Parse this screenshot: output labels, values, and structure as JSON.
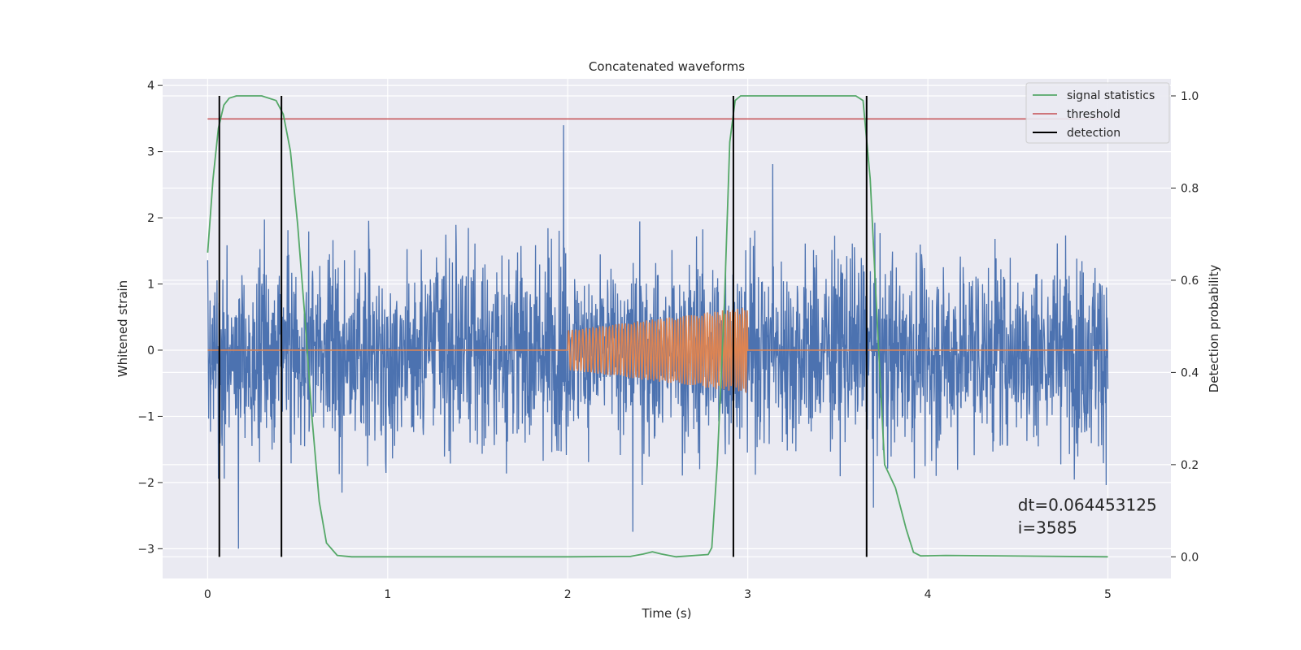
{
  "chart_data": {
    "type": "line",
    "title": "Concatenated waveforms",
    "xlabel": "Time (s)",
    "ylabel": "Whitened strain",
    "y2label": "Detection probability",
    "xlim": [
      -0.25,
      5.35
    ],
    "ylim": [
      -3.45,
      4.1
    ],
    "y2lim": [
      -0.047,
      1.037
    ],
    "xticks": [
      0,
      1,
      2,
      3,
      4,
      5
    ],
    "yticks": [
      -3,
      -2,
      -1,
      0,
      1,
      2,
      3,
      4
    ],
    "y2ticks": [
      0.0,
      0.2,
      0.4,
      0.6,
      0.8,
      1.0
    ],
    "xtick_labels": [
      "0",
      "1",
      "2",
      "3",
      "4",
      "5"
    ],
    "ytick_labels": [
      "−3",
      "−2",
      "−1",
      "0",
      "1",
      "2",
      "3",
      "4"
    ],
    "y2tick_labels": [
      "0.0",
      "0.2",
      "0.4",
      "0.6",
      "0.8",
      "1.0"
    ],
    "grid": true,
    "legend_position": "top-right",
    "colors": {
      "strain": "#4c72b0",
      "injection": "#dd8452",
      "signal_statistics": "#55a868",
      "threshold": "#c44e52",
      "detection": "#000000",
      "background": "#eaeaf2",
      "grid": "#ffffff"
    },
    "series": [
      {
        "name": "signal statistics",
        "axis": "right",
        "x": [
          0.0,
          0.03,
          0.06,
          0.09,
          0.12,
          0.16,
          0.2,
          0.3,
          0.38,
          0.42,
          0.46,
          0.5,
          0.54,
          0.58,
          0.62,
          0.66,
          0.72,
          0.8,
          1.0,
          2.0,
          2.35,
          2.42,
          2.47,
          2.52,
          2.6,
          2.78,
          2.8,
          2.83,
          2.87,
          2.9,
          2.93,
          2.96,
          3.0,
          3.6,
          3.64,
          3.68,
          3.72,
          3.76,
          3.82,
          3.88,
          3.92,
          3.96,
          4.1,
          5.0
        ],
        "y": [
          0.66,
          0.82,
          0.93,
          0.98,
          0.995,
          1.0,
          1.0,
          1.0,
          0.99,
          0.96,
          0.88,
          0.72,
          0.52,
          0.3,
          0.12,
          0.03,
          0.003,
          0.0,
          0.0,
          0.0,
          0.001,
          0.006,
          0.011,
          0.006,
          0.0,
          0.005,
          0.02,
          0.2,
          0.55,
          0.9,
          0.99,
          1.0,
          1.0,
          1.0,
          0.99,
          0.82,
          0.5,
          0.2,
          0.15,
          0.06,
          0.01,
          0.002,
          0.003,
          0.0
        ]
      },
      {
        "name": "threshold",
        "axis": "right",
        "x": [
          0.0,
          5.0
        ],
        "y": [
          0.95,
          0.95
        ]
      },
      {
        "name": "detection",
        "axis": "right",
        "x": [
          0.065,
          0.41,
          2.92,
          3.66
        ],
        "y_range": [
          0.0,
          1.0
        ]
      }
    ],
    "unlabeled_series": [
      {
        "role": "strain",
        "axis": "left",
        "x_range": [
          0.0,
          5.0
        ],
        "amplitude": "noise, mostly within ±1.8, peaks up to about 3.75 and down to about −3.0"
      },
      {
        "role": "injection",
        "axis": "left",
        "x_range": [
          2.0,
          3.0
        ],
        "amplitude_start": 0.3,
        "amplitude_end": 0.65,
        "baseline": 0.0
      }
    ],
    "annotations": [
      {
        "text": "dt=0.064453125\n i=3585",
        "x": 4.5,
        "y": 0.1,
        "axis": "right"
      }
    ]
  }
}
